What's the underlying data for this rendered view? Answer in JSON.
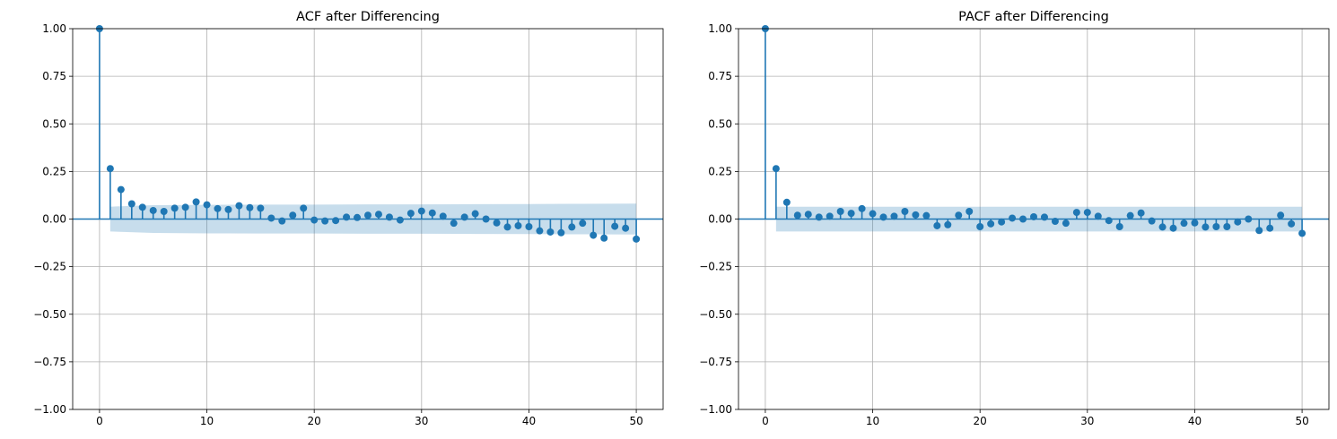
{
  "chart_data": [
    {
      "type": "stem",
      "title": "ACF after Differencing",
      "xlabel": "",
      "ylabel": "",
      "xlim": [
        -2.5,
        52.5
      ],
      "ylim": [
        -1.0,
        1.0
      ],
      "xticks": [
        0,
        10,
        20,
        30,
        40,
        50
      ],
      "yticks": [
        -1.0,
        -0.75,
        -0.5,
        -0.25,
        0.0,
        0.25,
        0.5,
        0.75,
        1.0
      ],
      "grid": true,
      "lags": [
        0,
        1,
        2,
        3,
        4,
        5,
        6,
        7,
        8,
        9,
        10,
        11,
        12,
        13,
        14,
        15,
        16,
        17,
        18,
        19,
        20,
        21,
        22,
        23,
        24,
        25,
        26,
        27,
        28,
        29,
        30,
        31,
        32,
        33,
        34,
        35,
        36,
        37,
        38,
        39,
        40,
        41,
        42,
        43,
        44,
        45,
        46,
        47,
        48,
        49,
        50
      ],
      "values": [
        1.0,
        0.265,
        0.155,
        0.08,
        0.062,
        0.045,
        0.04,
        0.057,
        0.062,
        0.09,
        0.075,
        0.055,
        0.05,
        0.07,
        0.06,
        0.057,
        0.005,
        -0.01,
        0.02,
        0.057,
        -0.005,
        -0.01,
        -0.008,
        0.01,
        0.008,
        0.02,
        0.025,
        0.01,
        -0.005,
        0.03,
        0.042,
        0.032,
        0.015,
        -0.022,
        0.01,
        0.028,
        0.0,
        -0.02,
        -0.042,
        -0.035,
        -0.04,
        -0.062,
        -0.068,
        -0.072,
        -0.042,
        -0.022,
        -0.085,
        -0.1,
        -0.038,
        -0.048,
        -0.105
      ],
      "confidence_band": {
        "lags": [
          1,
          5,
          10,
          15,
          20,
          25,
          30,
          35,
          40,
          45,
          50
        ],
        "upper": [
          0.065,
          0.073,
          0.075,
          0.076,
          0.076,
          0.077,
          0.077,
          0.078,
          0.079,
          0.08,
          0.081
        ],
        "lower": [
          -0.065,
          -0.073,
          -0.075,
          -0.076,
          -0.076,
          -0.077,
          -0.077,
          -0.078,
          -0.079,
          -0.08,
          -0.081
        ]
      }
    },
    {
      "type": "stem",
      "title": "PACF after Differencing",
      "xlabel": "",
      "ylabel": "",
      "xlim": [
        -2.5,
        52.5
      ],
      "ylim": [
        -1.0,
        1.0
      ],
      "xticks": [
        0,
        10,
        20,
        30,
        40,
        50
      ],
      "yticks": [
        -1.0,
        -0.75,
        -0.5,
        -0.25,
        0.0,
        0.25,
        0.5,
        0.75,
        1.0
      ],
      "grid": true,
      "lags": [
        0,
        1,
        2,
        3,
        4,
        5,
        6,
        7,
        8,
        9,
        10,
        11,
        12,
        13,
        14,
        15,
        16,
        17,
        18,
        19,
        20,
        21,
        22,
        23,
        24,
        25,
        26,
        27,
        28,
        29,
        30,
        31,
        32,
        33,
        34,
        35,
        36,
        37,
        38,
        39,
        40,
        41,
        42,
        43,
        44,
        45,
        46,
        47,
        48,
        49,
        50
      ],
      "values": [
        1.0,
        0.265,
        0.088,
        0.02,
        0.025,
        0.01,
        0.015,
        0.04,
        0.03,
        0.055,
        0.028,
        0.01,
        0.015,
        0.04,
        0.022,
        0.018,
        -0.035,
        -0.03,
        0.02,
        0.04,
        -0.04,
        -0.025,
        -0.015,
        0.005,
        0.0,
        0.012,
        0.01,
        -0.012,
        -0.022,
        0.035,
        0.035,
        0.015,
        -0.008,
        -0.04,
        0.018,
        0.032,
        -0.01,
        -0.042,
        -0.048,
        -0.022,
        -0.02,
        -0.042,
        -0.04,
        -0.04,
        -0.015,
        0.0,
        -0.06,
        -0.048,
        0.02,
        -0.025,
        -0.075
      ],
      "confidence_band": {
        "lags": [
          1,
          50
        ],
        "upper": [
          0.065,
          0.065
        ],
        "lower": [
          -0.065,
          -0.065
        ]
      }
    }
  ],
  "colors": {
    "stem": "#1f77b4",
    "band": "#1f77b4",
    "grid": "#b0b0b0",
    "axes": "#000000"
  }
}
